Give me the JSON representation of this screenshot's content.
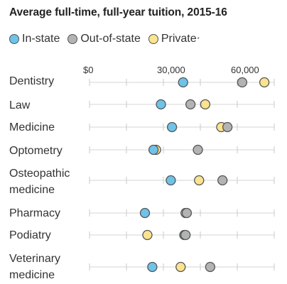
{
  "chart_data": {
    "type": "scatter",
    "title": "Average full-time, full-year tuition, 2015-16",
    "xlabel": "",
    "ylabel": "",
    "xlim": [
      0,
      75000
    ],
    "grid": true,
    "legend_placement": "top-left",
    "x_ticks": [
      {
        "value": 0,
        "label": "$0"
      },
      {
        "value": 30000,
        "label": "30,000"
      },
      {
        "value": 60000,
        "label": "60,000"
      }
    ],
    "categories": [
      [
        "Dentistry"
      ],
      [
        "Law"
      ],
      [
        "Medicine"
      ],
      [
        "Optometry"
      ],
      [
        "Osteopathic",
        "medicine"
      ],
      [
        "Pharmacy"
      ],
      [
        "Podiatry"
      ],
      [
        "Veterinary",
        "medicine"
      ]
    ],
    "series": [
      {
        "name": "In-state",
        "color": "#6ec3e8",
        "values": [
          38000,
          29000,
          33500,
          26000,
          33000,
          22500,
          38500,
          25500
        ]
      },
      {
        "name": "Out-of-state",
        "color": "#b3b3b3",
        "values": [
          62000,
          41000,
          56000,
          44000,
          54000,
          39500,
          39000,
          49000
        ]
      },
      {
        "name": "Private",
        "color": "#fbe38f",
        "values": [
          71000,
          47000,
          53500,
          27000,
          44500,
          39000,
          23500,
          37000
        ]
      }
    ],
    "footnote_marker": "*"
  }
}
